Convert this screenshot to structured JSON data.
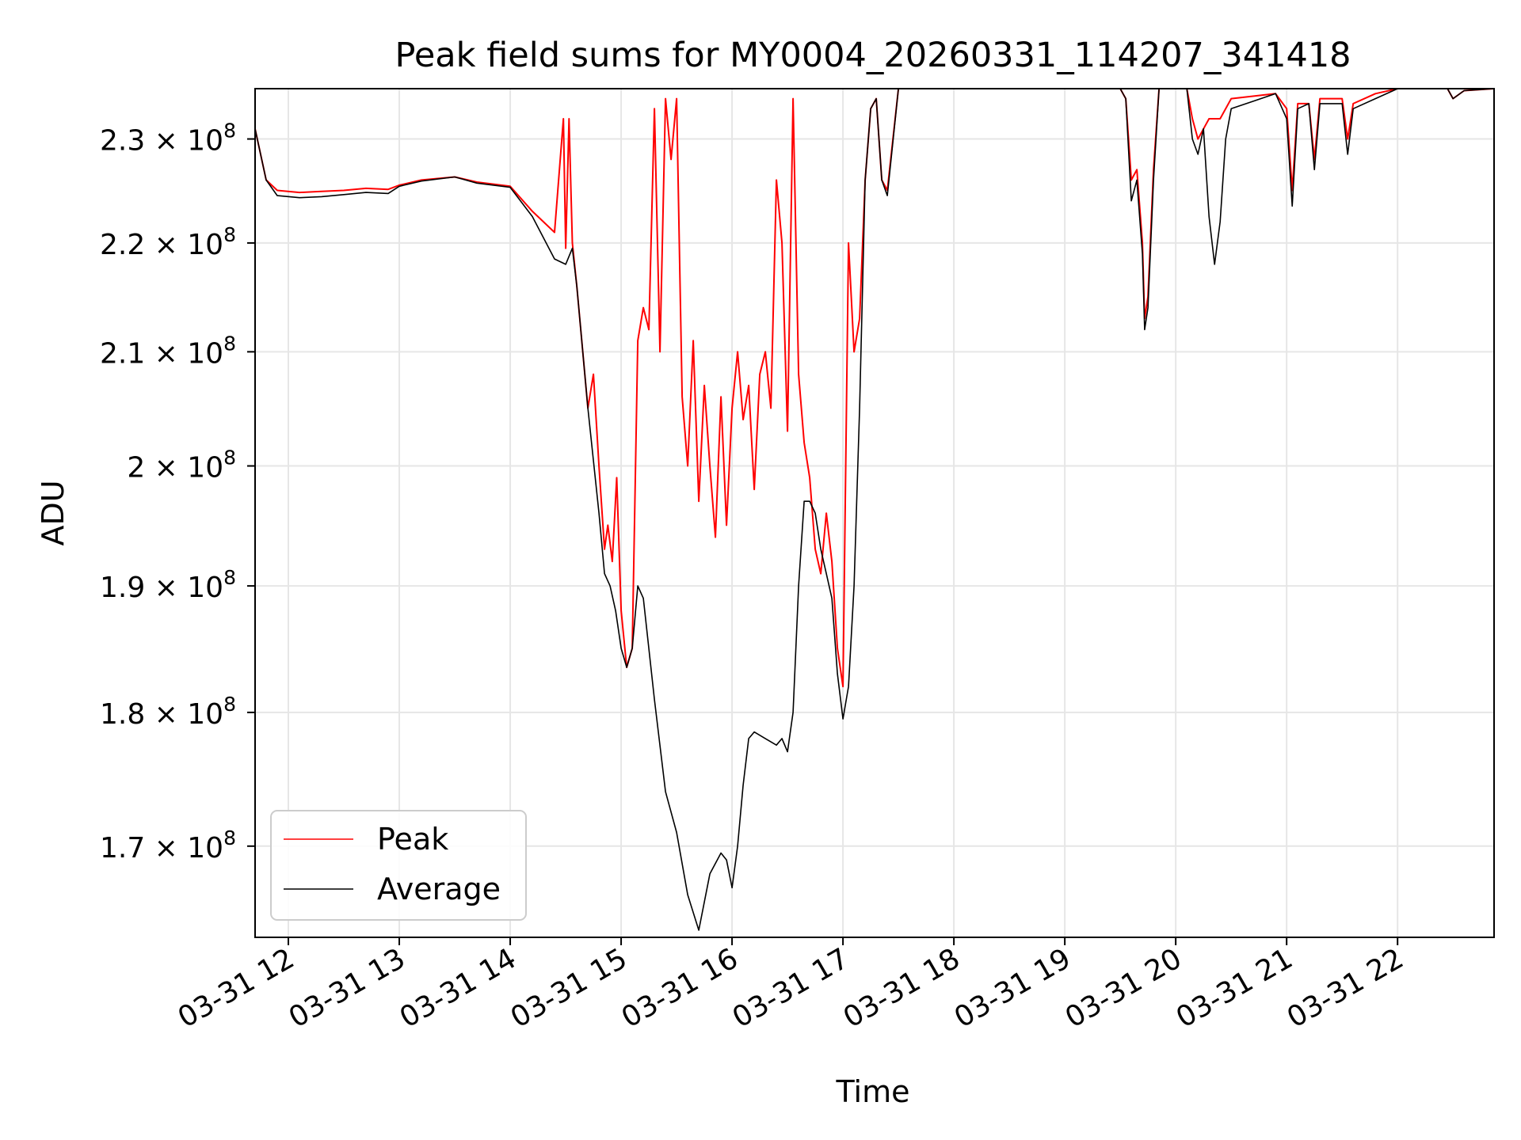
{
  "chart_data": {
    "type": "line",
    "title": "Peak field sums for MY0004_20260331_114207_341418",
    "xlabel": "Time",
    "ylabel": "ADU",
    "yscale": "log",
    "grid": true,
    "legend_position": "lower-left",
    "xlim_hours": [
      11.7,
      22.87
    ],
    "ylim": [
      163500000,
      235000000
    ],
    "x_ticks": [
      {
        "label": "03-31 12",
        "value": 12
      },
      {
        "label": "03-31 13",
        "value": 13
      },
      {
        "label": "03-31 14",
        "value": 14
      },
      {
        "label": "03-31 15",
        "value": 15
      },
      {
        "label": "03-31 16",
        "value": 16
      },
      {
        "label": "03-31 17",
        "value": 17
      },
      {
        "label": "03-31 18",
        "value": 18
      },
      {
        "label": "03-31 19",
        "value": 19
      },
      {
        "label": "03-31 20",
        "value": 20
      },
      {
        "label": "03-31 21",
        "value": 21
      },
      {
        "label": "03-31 22",
        "value": 22
      }
    ],
    "y_ticks": [
      {
        "mantissa": "1.7",
        "exp": "8",
        "value": 170000000
      },
      {
        "mantissa": "1.8",
        "exp": "8",
        "value": 180000000
      },
      {
        "mantissa": "1.9",
        "exp": "8",
        "value": 190000000
      },
      {
        "mantissa": "2",
        "exp": "8",
        "value": 200000000
      },
      {
        "mantissa": "2.1",
        "exp": "8",
        "value": 210000000
      },
      {
        "mantissa": "2.2",
        "exp": "8",
        "value": 220000000
      },
      {
        "mantissa": "2.3",
        "exp": "8",
        "value": 230000000
      }
    ],
    "series": [
      {
        "name": "Peak",
        "color": "#ff0000",
        "points": [
          [
            11.7,
            231000000
          ],
          [
            11.8,
            226000000
          ],
          [
            11.9,
            225000000
          ],
          [
            12.1,
            224800000
          ],
          [
            12.3,
            224900000
          ],
          [
            12.5,
            225000000
          ],
          [
            12.7,
            225200000
          ],
          [
            12.9,
            225100000
          ],
          [
            13.0,
            225500000
          ],
          [
            13.2,
            226000000
          ],
          [
            13.5,
            226300000
          ],
          [
            13.7,
            225800000
          ],
          [
            14.0,
            225400000
          ],
          [
            14.2,
            223000000
          ],
          [
            14.4,
            221000000
          ],
          [
            14.48,
            232000000
          ],
          [
            14.5,
            219500000
          ],
          [
            14.53,
            232000000
          ],
          [
            14.56,
            220000000
          ],
          [
            14.6,
            216000000
          ],
          [
            14.7,
            205000000
          ],
          [
            14.75,
            208000000
          ],
          [
            14.8,
            200000000
          ],
          [
            14.85,
            193000000
          ],
          [
            14.88,
            195000000
          ],
          [
            14.92,
            192000000
          ],
          [
            14.96,
            199000000
          ],
          [
            15.0,
            188000000
          ],
          [
            15.05,
            183500000
          ],
          [
            15.1,
            185000000
          ],
          [
            15.15,
            211000000
          ],
          [
            15.2,
            214000000
          ],
          [
            15.25,
            212000000
          ],
          [
            15.3,
            233000000
          ],
          [
            15.35,
            210000000
          ],
          [
            15.4,
            234000000
          ],
          [
            15.45,
            228000000
          ],
          [
            15.5,
            234000000
          ],
          [
            15.55,
            206000000
          ],
          [
            15.6,
            200000000
          ],
          [
            15.65,
            211000000
          ],
          [
            15.7,
            197000000
          ],
          [
            15.75,
            207000000
          ],
          [
            15.8,
            200000000
          ],
          [
            15.85,
            194000000
          ],
          [
            15.9,
            206000000
          ],
          [
            15.95,
            195000000
          ],
          [
            16.0,
            205000000
          ],
          [
            16.05,
            210000000
          ],
          [
            16.1,
            204000000
          ],
          [
            16.15,
            207000000
          ],
          [
            16.2,
            198000000
          ],
          [
            16.25,
            208000000
          ],
          [
            16.3,
            210000000
          ],
          [
            16.35,
            205000000
          ],
          [
            16.4,
            226000000
          ],
          [
            16.45,
            220000000
          ],
          [
            16.5,
            203000000
          ],
          [
            16.55,
            234000000
          ],
          [
            16.6,
            208000000
          ],
          [
            16.65,
            202000000
          ],
          [
            16.7,
            199000000
          ],
          [
            16.75,
            193000000
          ],
          [
            16.8,
            191000000
          ],
          [
            16.85,
            196000000
          ],
          [
            16.9,
            192000000
          ],
          [
            16.95,
            185000000
          ],
          [
            17.0,
            182000000
          ],
          [
            17.05,
            220000000
          ],
          [
            17.1,
            210000000
          ],
          [
            17.15,
            213000000
          ],
          [
            17.2,
            226000000
          ],
          [
            17.25,
            233000000
          ],
          [
            17.3,
            234000000
          ],
          [
            17.35,
            226000000
          ],
          [
            17.4,
            225000000
          ],
          [
            17.5,
            235000000
          ],
          [
            19.5,
            235000000
          ],
          [
            19.55,
            234000000
          ],
          [
            19.6,
            226000000
          ],
          [
            19.65,
            227000000
          ],
          [
            19.7,
            220000000
          ],
          [
            19.72,
            213000000
          ],
          [
            19.75,
            215000000
          ],
          [
            19.8,
            227000000
          ],
          [
            19.85,
            235000000
          ],
          [
            20.1,
            235000000
          ],
          [
            20.15,
            232000000
          ],
          [
            20.2,
            230000000
          ],
          [
            20.3,
            232000000
          ],
          [
            20.4,
            232000000
          ],
          [
            20.5,
            234000000
          ],
          [
            20.9,
            234500000
          ],
          [
            21.0,
            233000000
          ],
          [
            21.05,
            225000000
          ],
          [
            21.1,
            233500000
          ],
          [
            21.2,
            233500000
          ],
          [
            21.25,
            228000000
          ],
          [
            21.3,
            234000000
          ],
          [
            21.5,
            234000000
          ],
          [
            21.55,
            230000000
          ],
          [
            21.6,
            233500000
          ],
          [
            21.8,
            234500000
          ],
          [
            22.0,
            235000000
          ],
          [
            22.45,
            235000000
          ],
          [
            22.5,
            234000000
          ],
          [
            22.6,
            234800000
          ],
          [
            22.87,
            235000000
          ]
        ]
      },
      {
        "name": "Average",
        "color": "#000000",
        "points": [
          [
            11.7,
            231000000
          ],
          [
            11.8,
            226000000
          ],
          [
            11.9,
            224500000
          ],
          [
            12.1,
            224300000
          ],
          [
            12.3,
            224400000
          ],
          [
            12.5,
            224600000
          ],
          [
            12.7,
            224800000
          ],
          [
            12.9,
            224700000
          ],
          [
            13.0,
            225400000
          ],
          [
            13.2,
            225900000
          ],
          [
            13.5,
            226300000
          ],
          [
            13.7,
            225700000
          ],
          [
            14.0,
            225300000
          ],
          [
            14.2,
            222500000
          ],
          [
            14.4,
            218500000
          ],
          [
            14.5,
            218000000
          ],
          [
            14.56,
            219500000
          ],
          [
            14.6,
            216000000
          ],
          [
            14.7,
            205000000
          ],
          [
            14.8,
            196000000
          ],
          [
            14.85,
            191000000
          ],
          [
            14.9,
            190000000
          ],
          [
            14.95,
            188000000
          ],
          [
            15.0,
            185000000
          ],
          [
            15.05,
            183500000
          ],
          [
            15.1,
            185000000
          ],
          [
            15.15,
            190000000
          ],
          [
            15.2,
            189000000
          ],
          [
            15.3,
            181000000
          ],
          [
            15.4,
            174000000
          ],
          [
            15.5,
            171000000
          ],
          [
            15.6,
            166500000
          ],
          [
            15.7,
            164000000
          ],
          [
            15.8,
            168000000
          ],
          [
            15.9,
            169500000
          ],
          [
            15.95,
            169000000
          ],
          [
            16.0,
            167000000
          ],
          [
            16.05,
            170000000
          ],
          [
            16.1,
            174500000
          ],
          [
            16.15,
            178000000
          ],
          [
            16.2,
            178500000
          ],
          [
            16.3,
            178000000
          ],
          [
            16.4,
            177500000
          ],
          [
            16.45,
            178000000
          ],
          [
            16.5,
            177000000
          ],
          [
            16.55,
            180000000
          ],
          [
            16.6,
            190000000
          ],
          [
            16.65,
            197000000
          ],
          [
            16.7,
            197000000
          ],
          [
            16.75,
            196000000
          ],
          [
            16.8,
            193000000
          ],
          [
            16.85,
            191000000
          ],
          [
            16.9,
            189000000
          ],
          [
            16.95,
            183000000
          ],
          [
            17.0,
            179500000
          ],
          [
            17.05,
            182000000
          ],
          [
            17.1,
            190000000
          ],
          [
            17.15,
            205000000
          ],
          [
            17.2,
            226000000
          ],
          [
            17.25,
            233000000
          ],
          [
            17.3,
            234000000
          ],
          [
            17.35,
            226000000
          ],
          [
            17.4,
            224500000
          ],
          [
            17.5,
            235000000
          ],
          [
            19.5,
            235000000
          ],
          [
            19.55,
            234000000
          ],
          [
            19.6,
            224000000
          ],
          [
            19.65,
            226000000
          ],
          [
            19.7,
            219000000
          ],
          [
            19.72,
            212000000
          ],
          [
            19.75,
            214000000
          ],
          [
            19.8,
            226000000
          ],
          [
            19.85,
            235000000
          ],
          [
            20.1,
            235000000
          ],
          [
            20.15,
            230000000
          ],
          [
            20.2,
            228500000
          ],
          [
            20.25,
            231000000
          ],
          [
            20.3,
            222500000
          ],
          [
            20.35,
            218000000
          ],
          [
            20.4,
            222000000
          ],
          [
            20.45,
            230000000
          ],
          [
            20.5,
            233000000
          ],
          [
            20.9,
            234500000
          ],
          [
            21.0,
            232000000
          ],
          [
            21.05,
            223500000
          ],
          [
            21.1,
            233000000
          ],
          [
            21.2,
            233500000
          ],
          [
            21.25,
            227000000
          ],
          [
            21.3,
            233500000
          ],
          [
            21.5,
            233500000
          ],
          [
            21.55,
            228500000
          ],
          [
            21.6,
            233000000
          ],
          [
            21.8,
            234000000
          ],
          [
            22.0,
            235000000
          ],
          [
            22.45,
            235000000
          ],
          [
            22.5,
            234000000
          ],
          [
            22.6,
            234800000
          ],
          [
            22.87,
            235000000
          ]
        ]
      }
    ]
  }
}
